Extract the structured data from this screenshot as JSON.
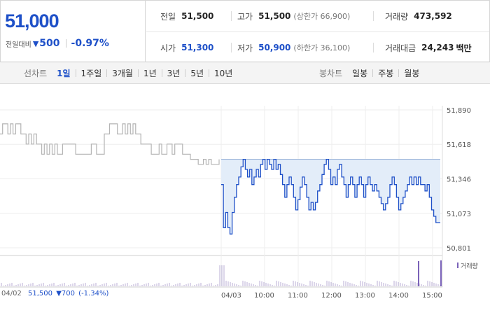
{
  "summary": {
    "current_price": "51,000",
    "diff_label": "전일대비",
    "diff_direction": "down",
    "diff_value": "500",
    "diff_rate": "-0.97%",
    "prev_close_label": "전일",
    "prev_close": "51,500",
    "high_label": "고가",
    "high": "51,500",
    "upper_limit": "(상한가 66,900)",
    "volume_label": "거래량",
    "volume": "473,592",
    "open_label": "시가",
    "open": "51,300",
    "low_label": "저가",
    "low": "50,900",
    "lower_limit": "(하한가 36,100)",
    "turnover_label": "거래대금",
    "turnover": "24,243",
    "turnover_unit": "백만"
  },
  "tabs": {
    "line_chart_label": "선차트",
    "line_chart_tabs": [
      "1일",
      "1주일",
      "3개월",
      "1년",
      "3년",
      "5년",
      "10년"
    ],
    "active_line_tab": "1일",
    "candle_chart_label": "봉차트",
    "candle_chart_tabs": [
      "일봉",
      "주봉",
      "월봉"
    ]
  },
  "prev_day": {
    "date": "04/02",
    "price": "51,500",
    "change": "▼700",
    "rate": "(-1.34%)"
  },
  "colors": {
    "accent_blue": "#1e50c8",
    "prev_line": "#b4b4b4",
    "fill": "#e3edf9",
    "volume_bar": "#7a62b8"
  },
  "chart_data": {
    "type": "line",
    "y_ticks": [
      "51,890",
      "51,618",
      "51,346",
      "51,073",
      "50,801"
    ],
    "ylim": [
      50801,
      51890
    ],
    "x_ticks": [
      "04/03",
      "10:00",
      "11:00",
      "12:00",
      "13:00",
      "14:00",
      "15:00"
    ],
    "volume_legend": "거래량",
    "series": [
      {
        "values": [
          51700,
          51780,
          51780,
          51700,
          51780,
          51700,
          51780,
          51780,
          51700,
          51700,
          51620,
          51700,
          51620,
          51700,
          51620,
          51620,
          51540,
          51620,
          51540,
          51620,
          51540,
          51620,
          51540,
          51540,
          51620,
          51620,
          51620,
          51620,
          51620,
          51540,
          51540,
          51540,
          51540,
          51540,
          51540,
          51620,
          51620,
          51540,
          51540,
          51540,
          51700,
          51700,
          51780,
          51780,
          51780,
          51700,
          51700,
          51780,
          51700,
          51780,
          51700,
          51780,
          51700,
          51700,
          51620,
          51620,
          51620,
          51620,
          51540,
          51540,
          51540,
          51620,
          51540,
          51540,
          51620,
          51620,
          51540,
          51620,
          51620,
          51620,
          51540,
          51540,
          51540,
          51500,
          51500,
          51500,
          51460,
          51460,
          51500,
          51460,
          51500,
          51460,
          51460,
          51460,
          51500
        ]
      },
      {
        "name": "04/03",
        "values": [
          51300,
          50960,
          51080,
          50960,
          50910,
          51080,
          51200,
          51300,
          51360,
          51440,
          51500,
          51420,
          51360,
          51420,
          51300,
          51360,
          51420,
          51360,
          51460,
          51500,
          51420,
          51500,
          51460,
          51420,
          51500,
          51420,
          51460,
          51380,
          51300,
          51200,
          51300,
          51360,
          51300,
          51200,
          51100,
          51180,
          51280,
          51360,
          51300,
          51200,
          51100,
          51160,
          51100,
          51160,
          51250,
          51300,
          51380,
          51460,
          51500,
          51420,
          51300,
          51360,
          51300,
          51420,
          51460,
          51360,
          51300,
          51200,
          51300,
          51360,
          51300,
          51200,
          51300,
          51360,
          51300,
          51200,
          51300,
          51360,
          51300,
          51250,
          51300,
          51250,
          51200,
          51150,
          51100,
          51150,
          51200,
          51300,
          51360,
          51300,
          51200,
          51100,
          51150,
          51200,
          51250,
          51300,
          51360,
          51300,
          51360,
          51300,
          51360,
          51300,
          51300,
          51250,
          51300,
          51200,
          51100,
          51050,
          51000,
          51000,
          51000
        ]
      }
    ]
  }
}
